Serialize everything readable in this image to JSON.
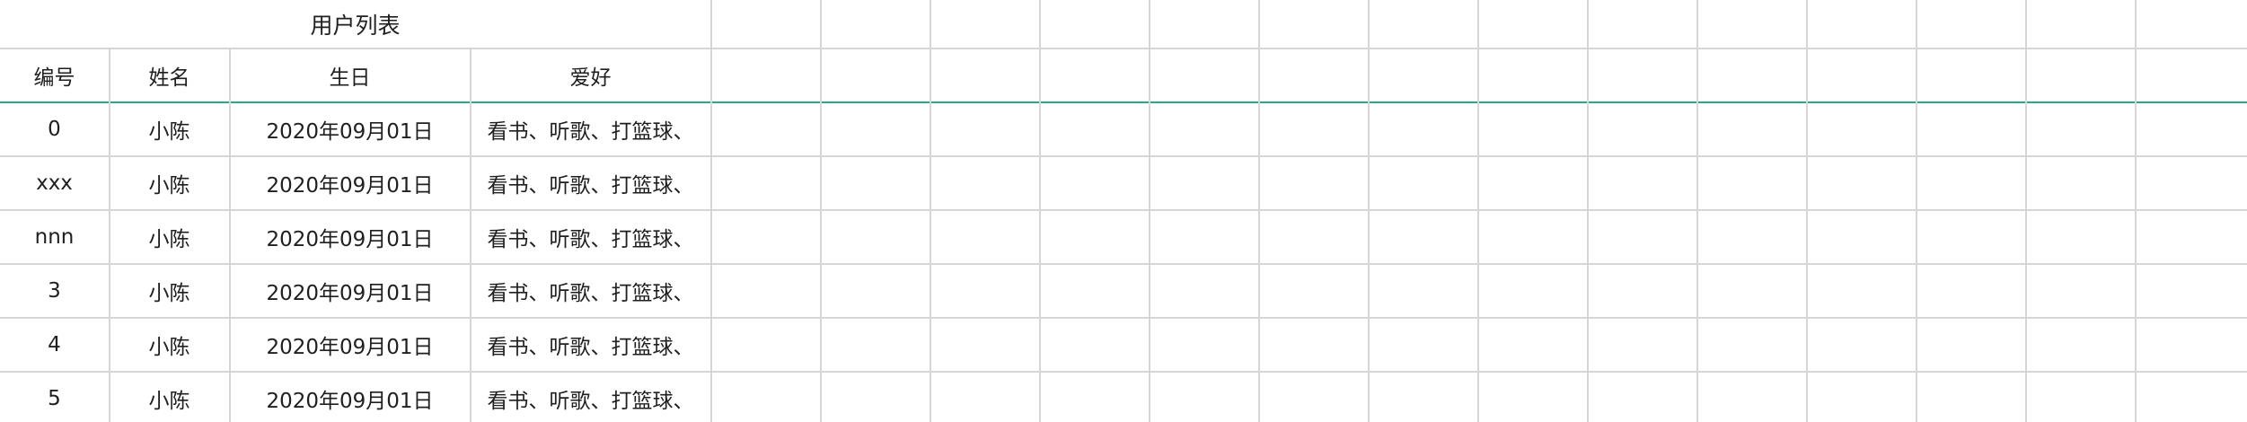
{
  "sheet": {
    "title": "用户列表",
    "columns": [
      "编号",
      "姓名",
      "生日",
      "爱好"
    ],
    "rows": [
      [
        "0",
        "小陈",
        "2020年09月01日",
        "看书、听歌、打篮球、"
      ],
      [
        "xxx",
        "小陈",
        "2020年09月01日",
        "看书、听歌、打篮球、"
      ],
      [
        "nnn",
        "小陈",
        "2020年09月01日",
        "看书、听歌、打篮球、"
      ],
      [
        "3",
        "小陈",
        "2020年09月01日",
        "看书、听歌、打篮球、"
      ],
      [
        "4",
        "小陈",
        "2020年09月01日",
        "看书、听歌、打篮球、"
      ],
      [
        "5",
        "小陈",
        "2020年09月01日",
        "看书、听歌、打篮球、"
      ]
    ],
    "colors": {
      "grid": "#d6d6d6",
      "header_underline": "#2aa883",
      "text": "#1f1f1f"
    }
  }
}
